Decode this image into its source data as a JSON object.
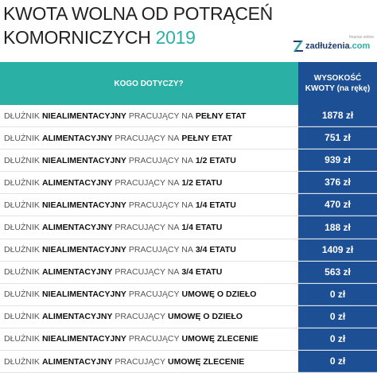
{
  "header": {
    "title_line1": "KWOTA WOLNA OD POTRĄCEŃ",
    "title_line2": "KOMORNICZYCH",
    "year": "2019",
    "logo": {
      "tagline": "finanse online",
      "name": "zadłużenia",
      "suffix": ".com"
    }
  },
  "table": {
    "columns": [
      "KOGO DOTYCZY?",
      "WYSOKOŚĆ KWOTY (na rękę)"
    ],
    "rows": [
      {
        "parts": [
          {
            "text": "DŁUŻNIK",
            "bold": false
          },
          {
            "text": "NIEALIMENTACYJNY",
            "bold": true
          },
          {
            "text": "PRACUJĄCY NA",
            "bold": false
          },
          {
            "text": "PEŁNY ETAT",
            "bold": true
          }
        ],
        "amount": "1878 zł"
      },
      {
        "parts": [
          {
            "text": "DŁUŻNIK",
            "bold": false
          },
          {
            "text": "ALIMENTACYJNY",
            "bold": true
          },
          {
            "text": "PRACUJĄCY NA",
            "bold": false
          },
          {
            "text": "PEŁNY ETAT",
            "bold": true
          }
        ],
        "amount": "751 zł"
      },
      {
        "parts": [
          {
            "text": "DŁUŻNIK",
            "bold": false
          },
          {
            "text": "NIEALIMENTACYJNY",
            "bold": true
          },
          {
            "text": "PRACUJĄCY NA",
            "bold": false
          },
          {
            "text": "1/2 ETATU",
            "bold": true
          }
        ],
        "amount": "939 zł"
      },
      {
        "parts": [
          {
            "text": "DŁUŻNIK",
            "bold": false
          },
          {
            "text": "ALIMENTACYJNY",
            "bold": true
          },
          {
            "text": "PRACUJĄCY NA",
            "bold": false
          },
          {
            "text": "1/2 ETATU",
            "bold": true
          }
        ],
        "amount": "376 zł"
      },
      {
        "parts": [
          {
            "text": "DŁUŻNIK",
            "bold": false
          },
          {
            "text": "NIEALIMENTACYJNY",
            "bold": true
          },
          {
            "text": "PRACUJĄCY NA",
            "bold": false
          },
          {
            "text": "1/4 ETATU",
            "bold": true
          }
        ],
        "amount": "470 zł"
      },
      {
        "parts": [
          {
            "text": "DŁUŻNIK",
            "bold": false
          },
          {
            "text": "ALIMENTACYJNY",
            "bold": true
          },
          {
            "text": "PRACUJĄCY NA",
            "bold": false
          },
          {
            "text": "1/4 ETATU",
            "bold": true
          }
        ],
        "amount": "188 zł"
      },
      {
        "parts": [
          {
            "text": "DŁUŻNIK",
            "bold": false
          },
          {
            "text": "NIEALIMENTACYJNY",
            "bold": true
          },
          {
            "text": "PRACUJĄCY NA",
            "bold": false
          },
          {
            "text": "3/4 ETATU",
            "bold": true
          }
        ],
        "amount": "1409 zł"
      },
      {
        "parts": [
          {
            "text": "DŁUŻNIK",
            "bold": false
          },
          {
            "text": "ALIMENTACYJNY",
            "bold": true
          },
          {
            "text": "PRACUJĄCY NA",
            "bold": false
          },
          {
            "text": "3/4 ETATU",
            "bold": true
          }
        ],
        "amount": "563 zł"
      },
      {
        "parts": [
          {
            "text": "DŁUŻNIK",
            "bold": false
          },
          {
            "text": "NIEALIMENTACYJNY",
            "bold": true
          },
          {
            "text": "PRACUJĄCY",
            "bold": false
          },
          {
            "text": "UMOWĘ O DZIEŁO",
            "bold": true
          }
        ],
        "amount": "0 zł"
      },
      {
        "parts": [
          {
            "text": "DŁUŻNIK",
            "bold": false
          },
          {
            "text": "ALIMENTACYJNY",
            "bold": true
          },
          {
            "text": "PRACUJĄCY",
            "bold": false
          },
          {
            "text": "UMOWĘ O DZIEŁO",
            "bold": true
          }
        ],
        "amount": "0 zł"
      },
      {
        "parts": [
          {
            "text": "DŁUŻNIK",
            "bold": false
          },
          {
            "text": "NIEALIMENTACYJNY",
            "bold": true
          },
          {
            "text": "PRACUJĄCY",
            "bold": false
          },
          {
            "text": "UMOWĘ ZLECENIE",
            "bold": true
          }
        ],
        "amount": "0 zł"
      },
      {
        "parts": [
          {
            "text": "DŁUŻNIK",
            "bold": false
          },
          {
            "text": "ALIMENTACYJNY",
            "bold": true
          },
          {
            "text": "PRACUJĄCY",
            "bold": false
          },
          {
            "text": "UMOWĘ ZLECENIE",
            "bold": true
          }
        ],
        "amount": "0 zł"
      }
    ]
  }
}
